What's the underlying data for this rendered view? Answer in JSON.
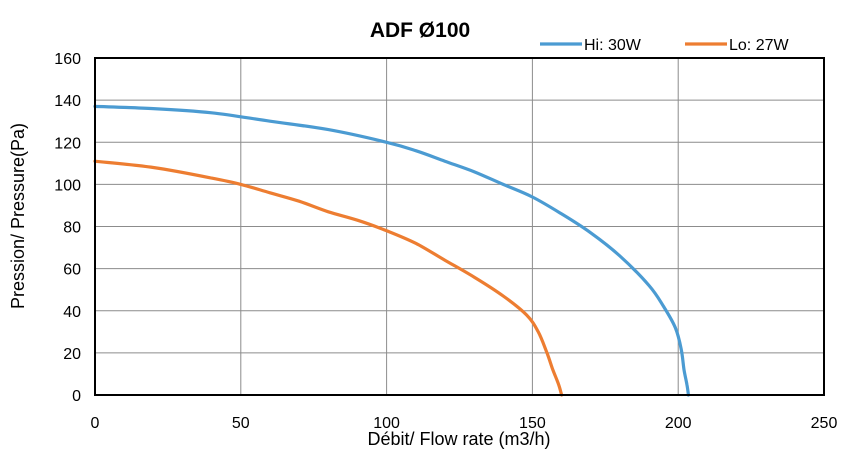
{
  "chart_data": {
    "type": "line",
    "title": "ADF Ø100",
    "xlabel": "Débit/ Flow rate (m3/h)",
    "ylabel": "Pression/ Pressure(Pa)",
    "xlim": [
      0,
      250
    ],
    "ylim": [
      0,
      160
    ],
    "x_ticks": [
      0,
      50,
      100,
      150,
      200,
      250
    ],
    "y_ticks": [
      0,
      20,
      40,
      60,
      80,
      100,
      120,
      140,
      160
    ],
    "grid": true,
    "legend_position": "top-right",
    "series": [
      {
        "name": "Hi: 30W",
        "color": "#4b9bd2",
        "points": [
          [
            0,
            137
          ],
          [
            20,
            136
          ],
          [
            40,
            134
          ],
          [
            60,
            130
          ],
          [
            80,
            126
          ],
          [
            100,
            120
          ],
          [
            110,
            116
          ],
          [
            120,
            111
          ],
          [
            130,
            106
          ],
          [
            140,
            100
          ],
          [
            150,
            94
          ],
          [
            160,
            86
          ],
          [
            170,
            77
          ],
          [
            180,
            66
          ],
          [
            190,
            52
          ],
          [
            195,
            42
          ],
          [
            199,
            32
          ],
          [
            201,
            22
          ],
          [
            202,
            12
          ],
          [
            203,
            5
          ],
          [
            203.5,
            0
          ]
        ]
      },
      {
        "name": "Lo: 27W",
        "color": "#ed7d31",
        "points": [
          [
            0,
            111
          ],
          [
            20,
            108
          ],
          [
            40,
            103
          ],
          [
            50,
            100
          ],
          [
            60,
            96
          ],
          [
            70,
            92
          ],
          [
            80,
            87
          ],
          [
            90,
            83
          ],
          [
            100,
            78
          ],
          [
            110,
            72
          ],
          [
            120,
            64
          ],
          [
            130,
            56
          ],
          [
            140,
            47
          ],
          [
            148,
            38
          ],
          [
            152,
            30
          ],
          [
            155,
            20
          ],
          [
            157,
            12
          ],
          [
            159,
            5
          ],
          [
            160,
            0
          ]
        ]
      }
    ]
  }
}
